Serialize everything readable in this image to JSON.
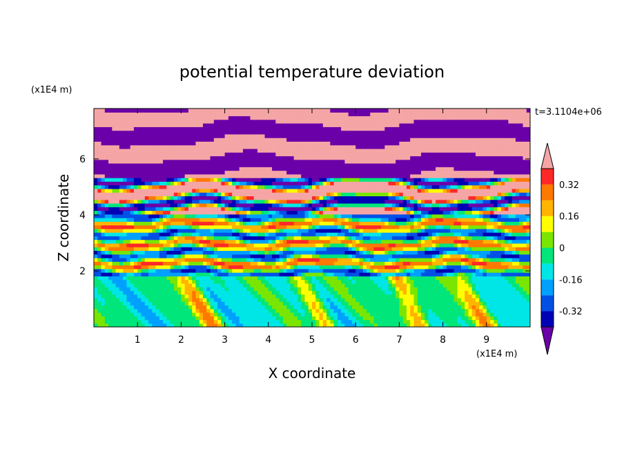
{
  "chart_data": {
    "type": "heatmap",
    "title": "potential temperature deviation",
    "xlabel": "X coordinate",
    "ylabel": "Z coordinate",
    "x_unit": "(x1E4 m)",
    "y_unit": "(x1E4 m)",
    "time_label": "t=3.1104e+06",
    "xlim": [
      0,
      10
    ],
    "ylim": [
      0,
      7.8
    ],
    "x_ticks": [
      1,
      2,
      3,
      4,
      5,
      6,
      7,
      8,
      9
    ],
    "y_ticks": [
      2,
      4,
      6
    ],
    "colorbar": {
      "levels": [
        -0.4,
        -0.32,
        -0.24,
        -0.16,
        -0.08,
        0,
        0.08,
        0.16,
        0.24,
        0.32,
        0.4
      ],
      "colors": [
        "#6a00a8",
        "#0000b4",
        "#0050e6",
        "#00a0ff",
        "#00e6e6",
        "#00e67a",
        "#7ae600",
        "#ffff00",
        "#ffb400",
        "#ff7800",
        "#ff2828",
        "#f5a5a5"
      ],
      "labels": [
        "0.32",
        "0.16",
        "0",
        "-0.16",
        "-0.32"
      ],
      "label_values": [
        0.32,
        0.16,
        0,
        -0.16,
        -0.32
      ]
    },
    "grid": false
  }
}
